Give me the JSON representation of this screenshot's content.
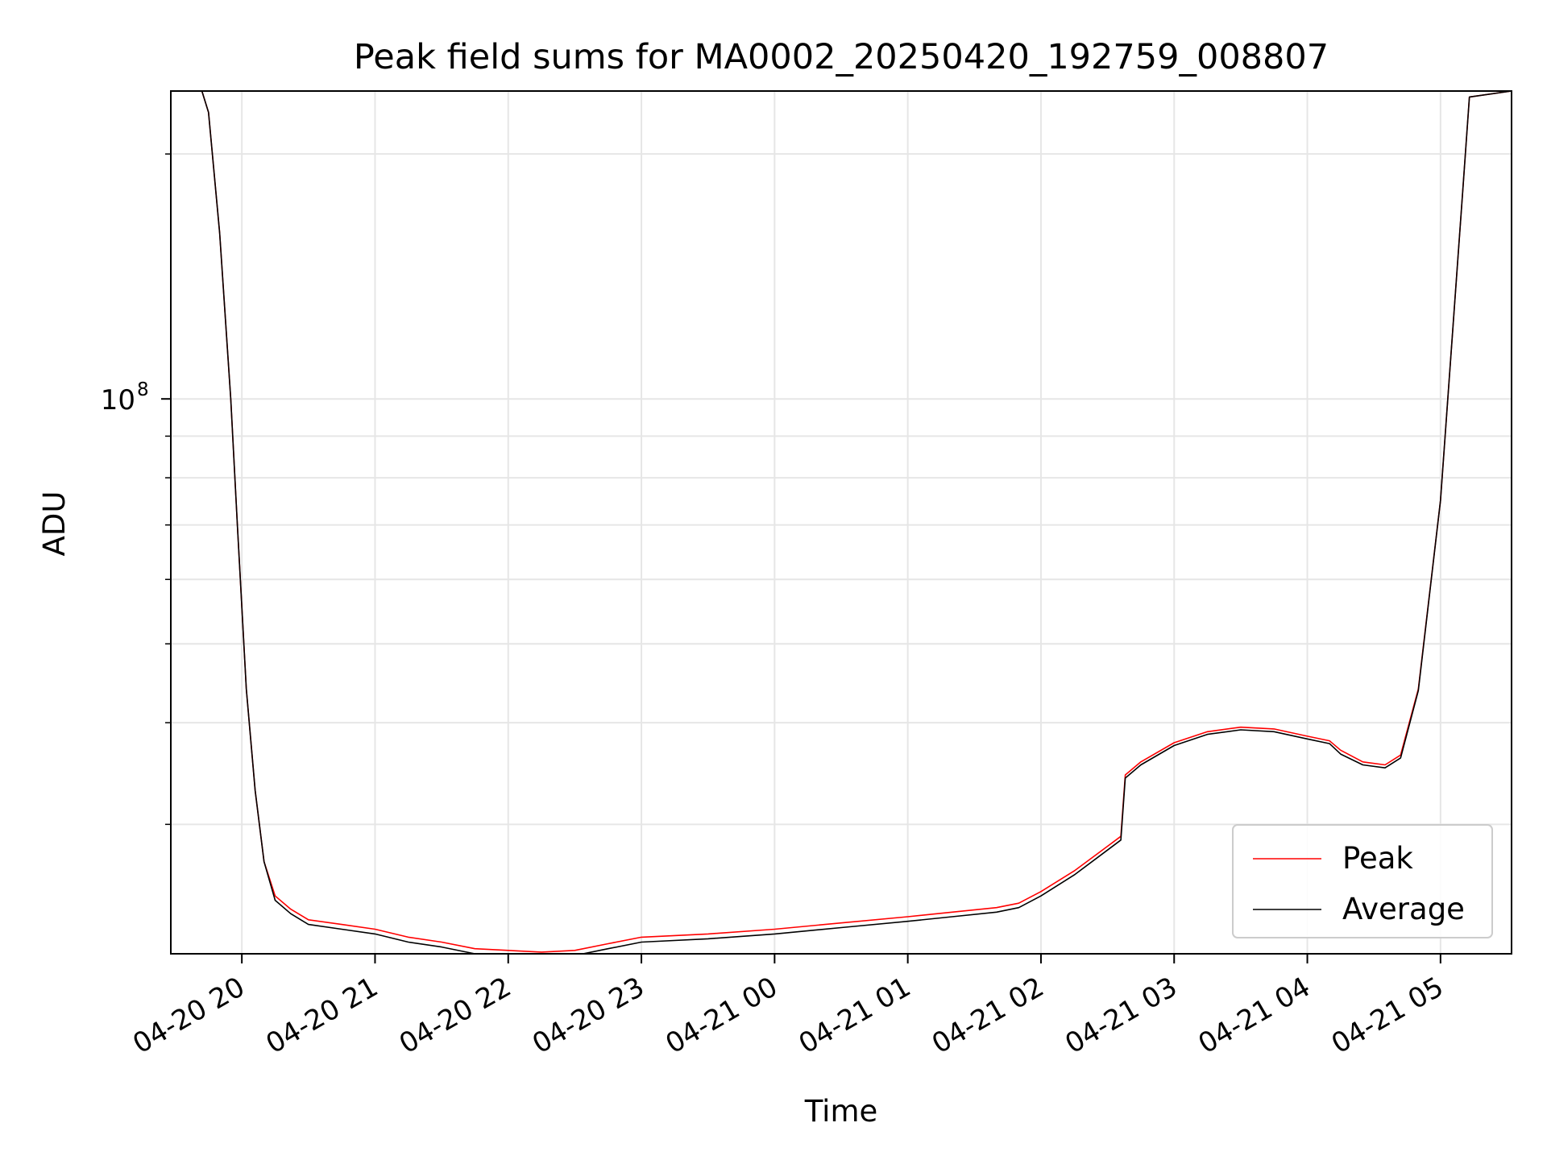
{
  "chart_data": {
    "type": "line",
    "title": "Peak field sums for MA0002_20250420_192759_008807",
    "xlabel": "Time",
    "ylabel": "ADU",
    "y_scale": "log",
    "ylim": [
      20800000,
      239000000
    ],
    "xlim": [
      "2025-04-20 19:28",
      "2025-04-21 05:32"
    ],
    "grid": true,
    "legend_position": "lower-right",
    "x_ticks": [
      {
        "value": "2025-04-20 20:00",
        "label": "04-20 20"
      },
      {
        "value": "2025-04-20 21:00",
        "label": "04-20 21"
      },
      {
        "value": "2025-04-20 22:00",
        "label": "04-20 22"
      },
      {
        "value": "2025-04-20 23:00",
        "label": "04-20 23"
      },
      {
        "value": "2025-04-21 00:00",
        "label": "04-21 00"
      },
      {
        "value": "2025-04-21 01:00",
        "label": "04-21 01"
      },
      {
        "value": "2025-04-21 02:00",
        "label": "04-21 02"
      },
      {
        "value": "2025-04-21 03:00",
        "label": "04-21 03"
      },
      {
        "value": "2025-04-21 04:00",
        "label": "04-21 04"
      },
      {
        "value": "2025-04-21 05:00",
        "label": "04-21 05"
      }
    ],
    "y_major_ticks": [
      {
        "value": 100000000,
        "base": "10",
        "exp": "8"
      }
    ],
    "y_minor_ticks": [
      30000000,
      40000000,
      50000000,
      60000000,
      70000000,
      80000000,
      90000000,
      200000000
    ],
    "x": [
      "2025-04-20 19:42",
      "2025-04-20 19:45",
      "2025-04-20 19:50",
      "2025-04-20 19:55",
      "2025-04-20 19:58",
      "2025-04-20 20:02",
      "2025-04-20 20:06",
      "2025-04-20 20:10",
      "2025-04-20 20:15",
      "2025-04-20 20:22",
      "2025-04-20 20:30",
      "2025-04-20 20:45",
      "2025-04-20 21:00",
      "2025-04-20 21:15",
      "2025-04-20 21:30",
      "2025-04-20 21:45",
      "2025-04-20 22:00",
      "2025-04-20 22:15",
      "2025-04-20 22:30",
      "2025-04-20 22:45",
      "2025-04-20 23:00",
      "2025-04-20 23:30",
      "2025-04-21 00:00",
      "2025-04-21 00:30",
      "2025-04-21 01:00",
      "2025-04-21 01:20",
      "2025-04-21 01:40",
      "2025-04-21 01:50",
      "2025-04-21 02:00",
      "2025-04-21 02:15",
      "2025-04-21 02:30",
      "2025-04-21 02:36",
      "2025-04-21 02:38",
      "2025-04-21 02:45",
      "2025-04-21 03:00",
      "2025-04-21 03:15",
      "2025-04-21 03:30",
      "2025-04-21 03:45",
      "2025-04-21 04:00",
      "2025-04-21 04:10",
      "2025-04-21 04:15",
      "2025-04-21 04:25",
      "2025-04-21 04:35",
      "2025-04-21 04:42",
      "2025-04-21 04:50",
      "2025-04-21 05:00",
      "2025-04-21 05:10",
      "2025-04-21 05:13",
      "2025-04-21 05:32"
    ],
    "series": [
      {
        "name": "Peak",
        "color": "#ff0000",
        "values": [
          239000000,
          225000000,
          160000000,
          100000000,
          70000000,
          44000000,
          33000000,
          27000000,
          24500000,
          23600000,
          22900000,
          22600000,
          22300000,
          21800000,
          21500000,
          21100000,
          21000000,
          20900000,
          21000000,
          21400000,
          21800000,
          22000000,
          22300000,
          22700000,
          23100000,
          23400000,
          23700000,
          24000000,
          24800000,
          26300000,
          28200000,
          29000000,
          34500000,
          35800000,
          37800000,
          39000000,
          39500000,
          39300000,
          38500000,
          38000000,
          37000000,
          35800000,
          35500000,
          36500000,
          44000000,
          75000000,
          180000000,
          235000000,
          239000000
        ]
      },
      {
        "name": "Average",
        "color": "#000000",
        "values": [
          239000000,
          225000000,
          160000000,
          100000000,
          70000000,
          44000000,
          33000000,
          27000000,
          24200000,
          23300000,
          22600000,
          22300000,
          22000000,
          21500000,
          21200000,
          20800000,
          20700000,
          20600000,
          20700000,
          21100000,
          21500000,
          21700000,
          22000000,
          22400000,
          22800000,
          23100000,
          23400000,
          23700000,
          24500000,
          26000000,
          27900000,
          28700000,
          34200000,
          35500000,
          37500000,
          38700000,
          39200000,
          39000000,
          38200000,
          37700000,
          36600000,
          35500000,
          35200000,
          36200000,
          43800000,
          75000000,
          180000000,
          235000000,
          239000000
        ]
      }
    ]
  }
}
